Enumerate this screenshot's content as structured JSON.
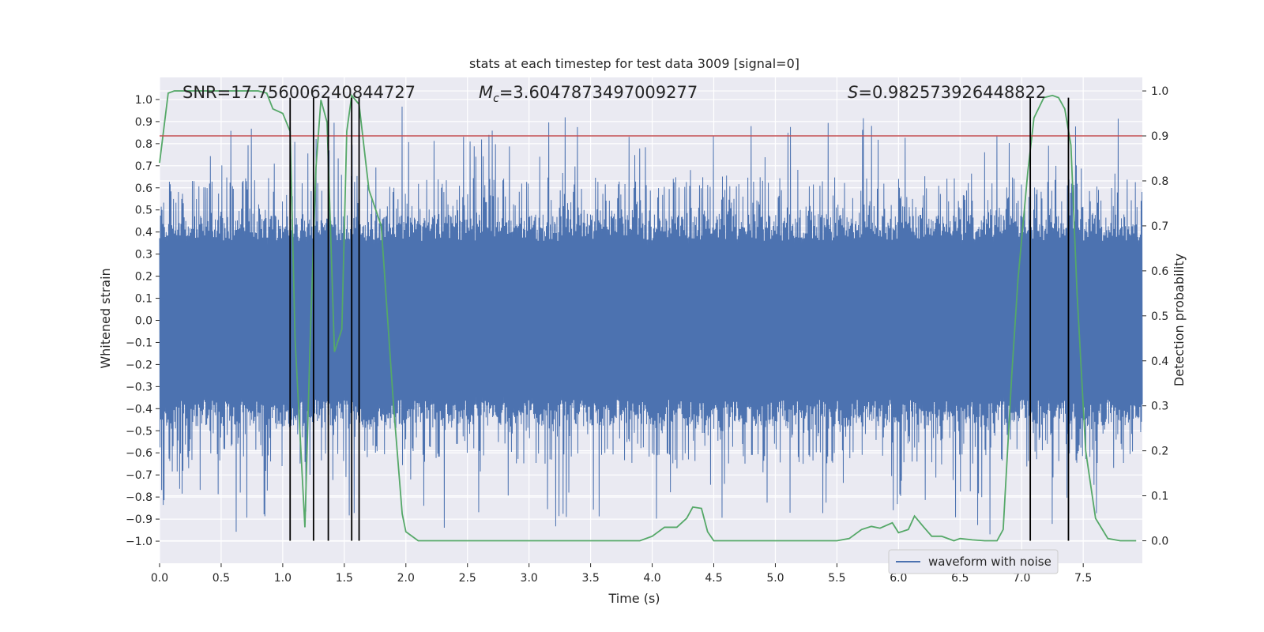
{
  "chart_data": {
    "type": "line",
    "title": "stats at each timestep for test data 3009 [signal=0]",
    "xlabel": "Time (s)",
    "ylabel_left": "Whitened strain",
    "ylabel_right": "Detection probability",
    "xlim": [
      0.0,
      7.98
    ],
    "ylim_left": [
      -1.1,
      1.1
    ],
    "ylim_right": [
      -0.05,
      1.03
    ],
    "x_ticks": [
      "0.0",
      "0.5",
      "1.0",
      "1.5",
      "2.0",
      "2.5",
      "3.0",
      "3.5",
      "4.0",
      "4.5",
      "5.0",
      "5.5",
      "6.0",
      "6.5",
      "7.0",
      "7.5"
    ],
    "x_tick_values": [
      0.0,
      0.5,
      1.0,
      1.5,
      2.0,
      2.5,
      3.0,
      3.5,
      4.0,
      4.5,
      5.0,
      5.5,
      6.0,
      6.5,
      7.0,
      7.5
    ],
    "y_left_ticks": [
      "1.0",
      "0.9",
      "0.8",
      "0.7",
      "0.6",
      "0.5",
      "0.4",
      "0.3",
      "0.2",
      "0.1",
      "0.0",
      "−0.1",
      "−0.2",
      "−0.3",
      "−0.4",
      "−0.5",
      "−0.6",
      "−0.7",
      "−0.8",
      "−0.9",
      "−1.0"
    ],
    "y_left_tick_values": [
      1.0,
      0.9,
      0.8,
      0.7,
      0.6,
      0.5,
      0.4,
      0.3,
      0.2,
      0.1,
      0.0,
      -0.1,
      -0.2,
      -0.3,
      -0.4,
      -0.5,
      -0.6,
      -0.7,
      -0.8,
      -0.9,
      -1.0
    ],
    "y_right_ticks": [
      "1.0",
      "0.9",
      "0.8",
      "0.7",
      "0.6",
      "0.5",
      "0.4",
      "0.3",
      "0.2",
      "0.1",
      "0.0"
    ],
    "y_right_tick_values": [
      1.0,
      0.9,
      0.8,
      0.7,
      0.6,
      0.5,
      0.4,
      0.3,
      0.2,
      0.1,
      0.0
    ],
    "annotations": {
      "snr": "SNR=17.756006240844727",
      "mc_symbol": "M",
      "mc_sub": "c",
      "mc_value": "=3.6047873497009277",
      "s_symbol": "S",
      "s_value": "=0.982573926448822"
    },
    "legend": {
      "placement": "lower-right",
      "entries": [
        "waveform with noise"
      ]
    },
    "threshold": 0.9,
    "event_lines": [
      1.06,
      1.25,
      1.37,
      1.56,
      1.62,
      7.07,
      7.38
    ],
    "waveform": {
      "name": "waveform with noise",
      "duration": 7.98,
      "samples": 2400,
      "core_amplitude": 0.36,
      "max_abs": 1.0
    },
    "detection_probability": {
      "x": [
        0.0,
        0.07,
        0.12,
        0.2,
        0.3,
        0.4,
        0.5,
        0.6,
        0.7,
        0.8,
        0.87,
        0.92,
        1.0,
        1.06,
        1.1,
        1.18,
        1.22,
        1.27,
        1.31,
        1.36,
        1.42,
        1.48,
        1.52,
        1.56,
        1.62,
        1.7,
        1.8,
        1.9,
        1.97,
        2.0,
        2.1,
        2.2,
        2.3,
        2.5,
        2.7,
        2.85,
        3.0,
        3.1,
        3.18,
        3.25,
        3.3,
        3.5,
        3.7,
        3.9,
        4.0,
        4.1,
        4.2,
        4.28,
        4.33,
        4.4,
        4.45,
        4.5,
        4.6,
        4.8,
        5.0,
        5.2,
        5.4,
        5.5,
        5.6,
        5.7,
        5.78,
        5.85,
        5.95,
        6.0,
        6.08,
        6.13,
        6.2,
        6.27,
        6.35,
        6.45,
        6.5,
        6.6,
        6.7,
        6.8,
        6.85,
        6.92,
        6.97,
        7.05,
        7.1,
        7.18,
        7.25,
        7.3,
        7.35,
        7.4,
        7.45,
        7.52,
        7.6,
        7.7,
        7.8,
        7.93
      ],
      "y": [
        0.84,
        0.995,
        1.0,
        1.0,
        1.0,
        1.0,
        1.0,
        1.0,
        1.0,
        1.0,
        0.995,
        0.96,
        0.95,
        0.91,
        0.45,
        0.03,
        0.42,
        0.83,
        0.98,
        0.93,
        0.42,
        0.47,
        0.91,
        0.99,
        0.97,
        0.78,
        0.7,
        0.3,
        0.06,
        0.02,
        0.0,
        0.0,
        0.0,
        0.0,
        0.0,
        0.0,
        0.0,
        0.0,
        0.0,
        0.0,
        0.0,
        0.0,
        0.0,
        0.0,
        0.01,
        0.03,
        0.03,
        0.05,
        0.075,
        0.072,
        0.02,
        0.0,
        0.0,
        0.0,
        0.0,
        0.0,
        0.0,
        0.0,
        0.005,
        0.025,
        0.032,
        0.028,
        0.04,
        0.018,
        0.025,
        0.055,
        0.032,
        0.01,
        0.01,
        0.0,
        0.005,
        0.002,
        0.0,
        0.0,
        0.025,
        0.37,
        0.58,
        0.82,
        0.94,
        0.985,
        0.99,
        0.985,
        0.96,
        0.88,
        0.55,
        0.2,
        0.05,
        0.005,
        0.0,
        0.0
      ]
    },
    "colors": {
      "plot_bg": "#eaeaf2",
      "grid": "#ffffff",
      "waveform": "#4c72b0",
      "probability": "#55a868",
      "threshold": "#c44e52",
      "event_line": "#000000",
      "text": "#262626"
    }
  }
}
